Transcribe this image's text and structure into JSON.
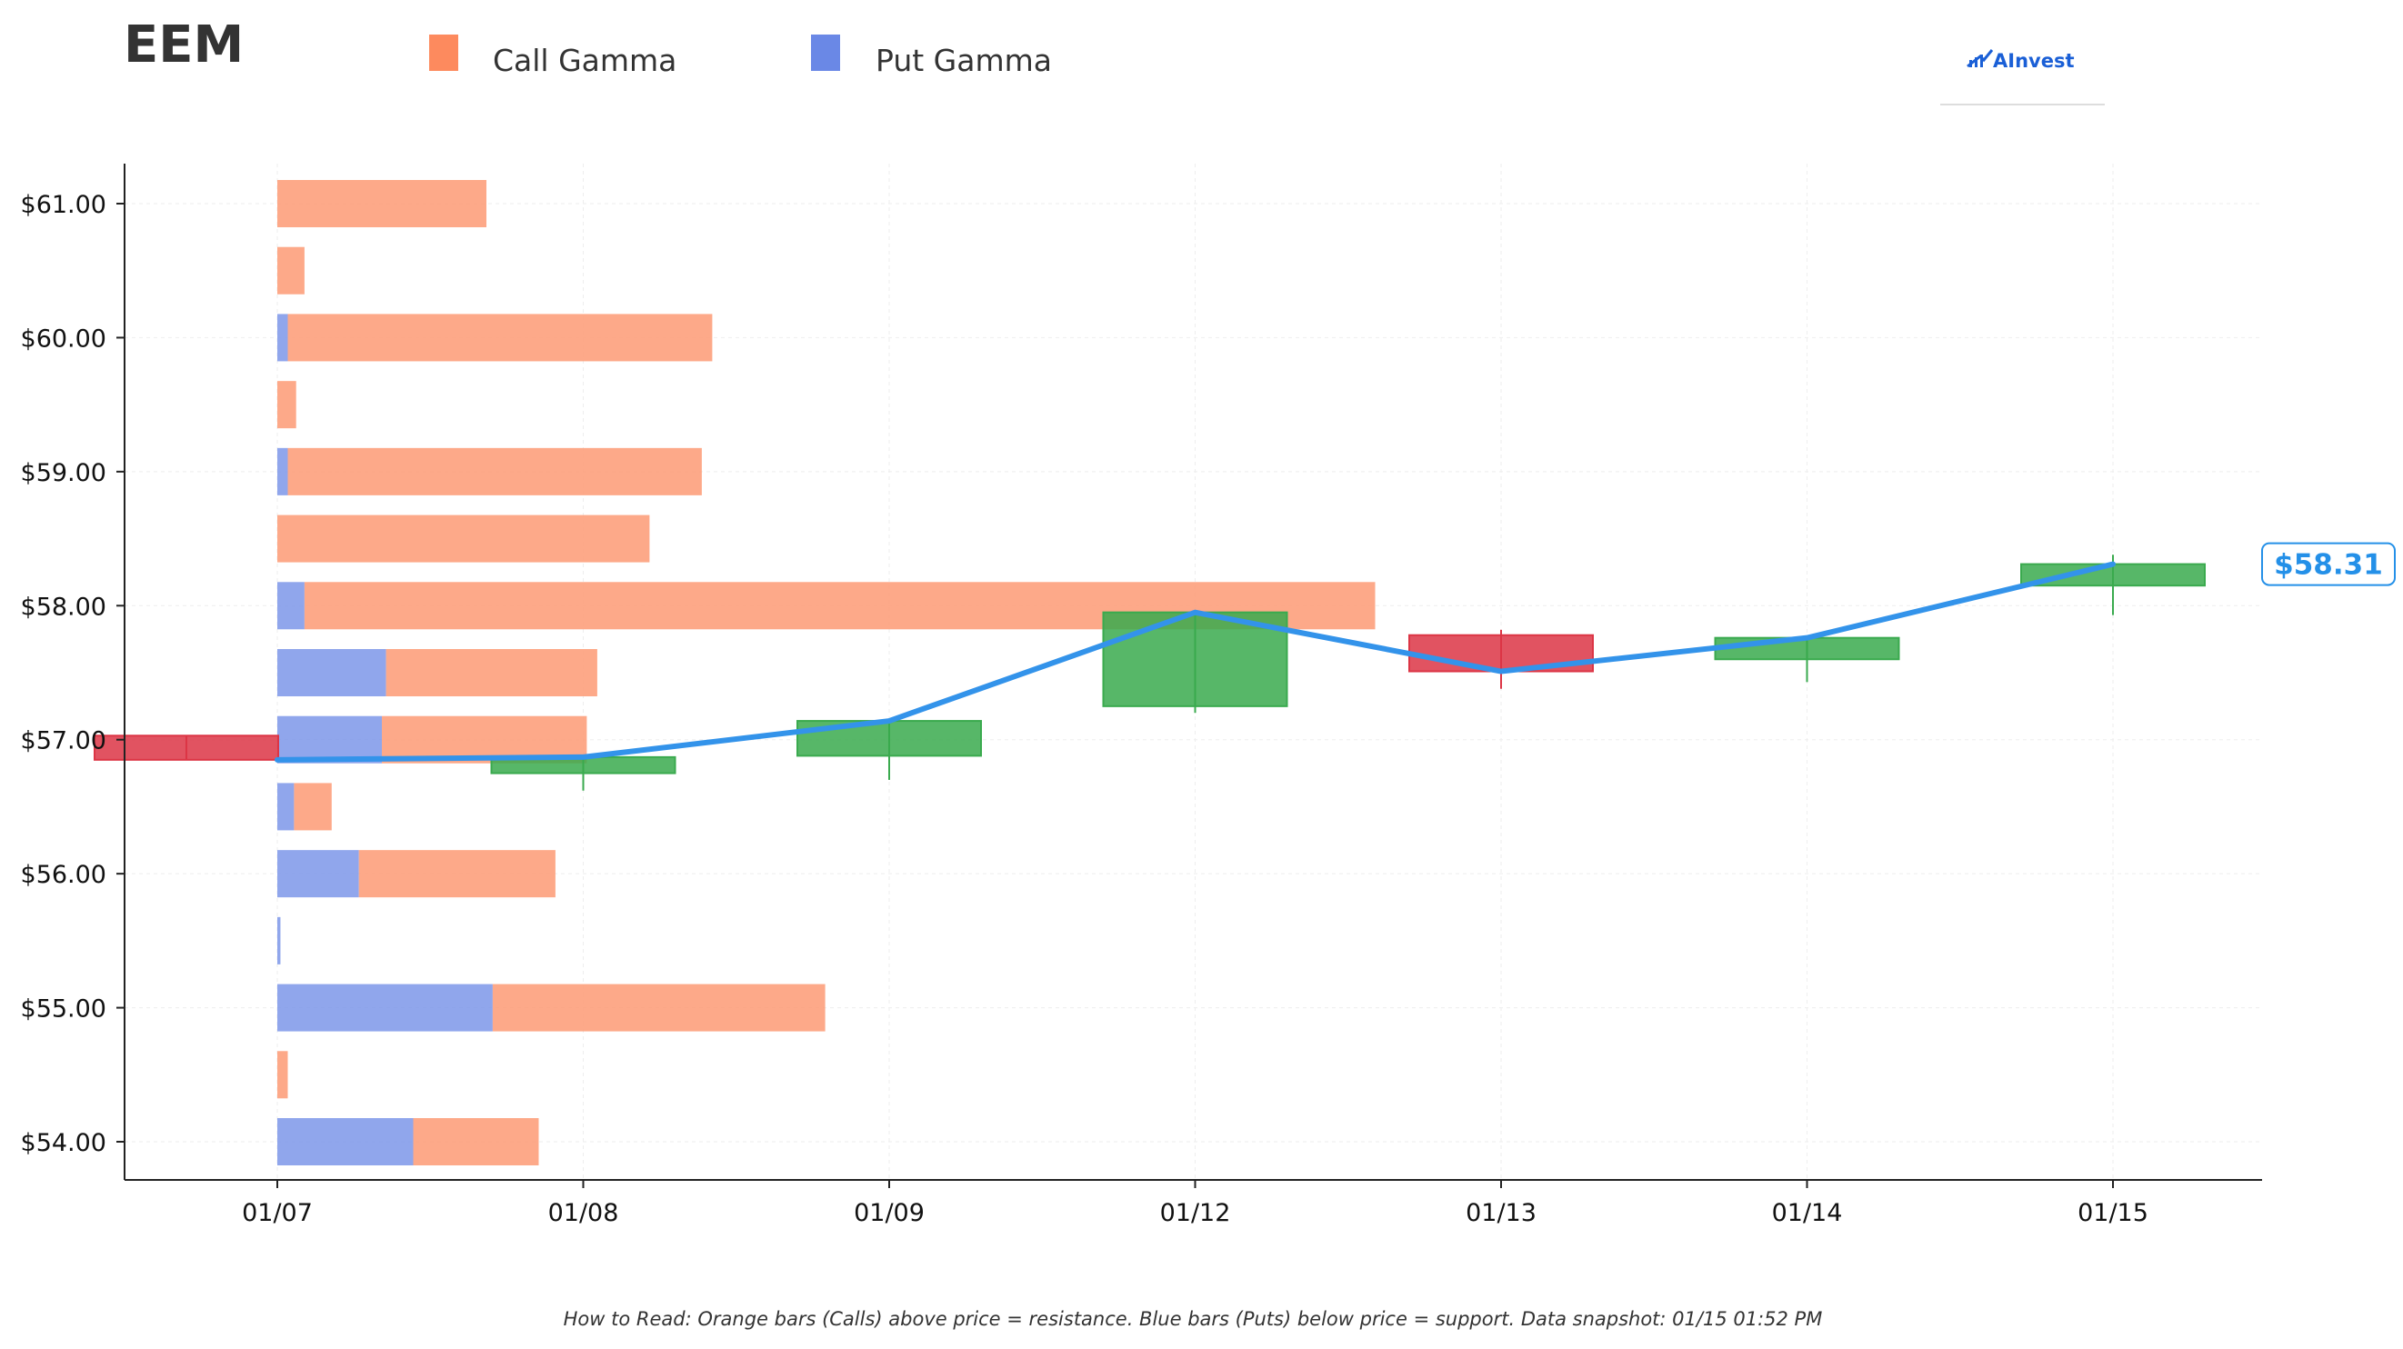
{
  "title": "EEM",
  "legend": {
    "call_label": "Call Gamma",
    "put_label": "Put Gamma"
  },
  "logo": {
    "text": "AInvest"
  },
  "price_tag": "$58.31",
  "footnote": "How to Read: Orange bars (Calls) above price = resistance. Blue bars (Puts) below price = support. Data snapshot: 01/15 01:52 PM",
  "colors": {
    "call": "#fd9a74",
    "put": "#7d96e9",
    "up": "#3aaa4e",
    "down": "#dc3545",
    "price_line": "#3393ea",
    "axis": "#222222",
    "grid": "#eeeeee"
  },
  "chart_data": {
    "type": "candlestick",
    "x_categories": [
      "01/07",
      "01/08",
      "01/09",
      "01/12",
      "01/13",
      "01/14",
      "01/15"
    ],
    "y_ticks": [
      {
        "value": 61,
        "label": "$61.00"
      },
      {
        "value": 60,
        "label": "$60.00"
      },
      {
        "value": 59,
        "label": "$59.00"
      },
      {
        "value": 58,
        "label": "$58.00"
      },
      {
        "value": 57,
        "label": "$57.00"
      },
      {
        "value": 56,
        "label": "$56.00"
      },
      {
        "value": 55,
        "label": "$55.00"
      },
      {
        "value": 54,
        "label": "$54.00"
      }
    ],
    "ylim": [
      53.7,
      61.3
    ],
    "grid": true,
    "candles": [
      {
        "date": "01/07",
        "open": 57.03,
        "close": 56.85,
        "high": 57.03,
        "low": 56.85
      },
      {
        "date": "01/08",
        "open": 56.75,
        "close": 56.87,
        "high": 56.88,
        "low": 56.62
      },
      {
        "date": "01/09",
        "open": 56.88,
        "close": 57.14,
        "high": 57.15,
        "low": 56.7
      },
      {
        "date": "01/12",
        "open": 57.25,
        "close": 57.95,
        "high": 57.95,
        "low": 57.2
      },
      {
        "date": "01/13",
        "open": 57.78,
        "close": 57.51,
        "high": 57.82,
        "low": 57.38
      },
      {
        "date": "01/14",
        "open": 57.6,
        "close": 57.76,
        "high": 57.77,
        "low": 57.43
      },
      {
        "date": "01/15",
        "open": 58.15,
        "close": 58.31,
        "high": 58.38,
        "low": 57.93
      }
    ],
    "price_line": [
      {
        "date": "01/07",
        "value": 56.85
      },
      {
        "date": "01/08",
        "value": 56.87
      },
      {
        "date": "01/09",
        "value": 57.14
      },
      {
        "date": "01/12",
        "value": 57.95
      },
      {
        "date": "01/13",
        "value": 57.51
      },
      {
        "date": "01/14",
        "value": 57.76
      },
      {
        "date": "01/15",
        "value": 58.31
      }
    ],
    "last_price": 58.31,
    "gamma_series": [
      {
        "name": "Put Gamma",
        "role": "put"
      },
      {
        "name": "Call Gamma",
        "role": "call"
      }
    ],
    "gamma_levels": [
      {
        "strike": 61.0,
        "put": 0.0,
        "call": 1.0
      },
      {
        "strike": 60.5,
        "put": 0.0,
        "call": 0.13
      },
      {
        "strike": 60.0,
        "put": 0.05,
        "call": 2.03
      },
      {
        "strike": 59.5,
        "put": 0.0,
        "call": 0.09
      },
      {
        "strike": 59.0,
        "put": 0.05,
        "call": 1.98
      },
      {
        "strike": 58.5,
        "put": 0.0,
        "call": 1.78
      },
      {
        "strike": 58.0,
        "put": 0.13,
        "call": 5.12
      },
      {
        "strike": 57.5,
        "put": 0.52,
        "call": 1.01
      },
      {
        "strike": 57.0,
        "put": 0.5,
        "call": 0.98
      },
      {
        "strike": 56.5,
        "put": 0.08,
        "call": 0.18
      },
      {
        "strike": 56.0,
        "put": 0.39,
        "call": 0.94
      },
      {
        "strike": 55.5,
        "put": 0.015,
        "call": 0.0
      },
      {
        "strike": 55.0,
        "put": 1.03,
        "call": 1.59
      },
      {
        "strike": 54.5,
        "put": 0.0,
        "call": 0.05
      },
      {
        "strike": 54.0,
        "put": 0.65,
        "call": 0.6
      }
    ]
  }
}
